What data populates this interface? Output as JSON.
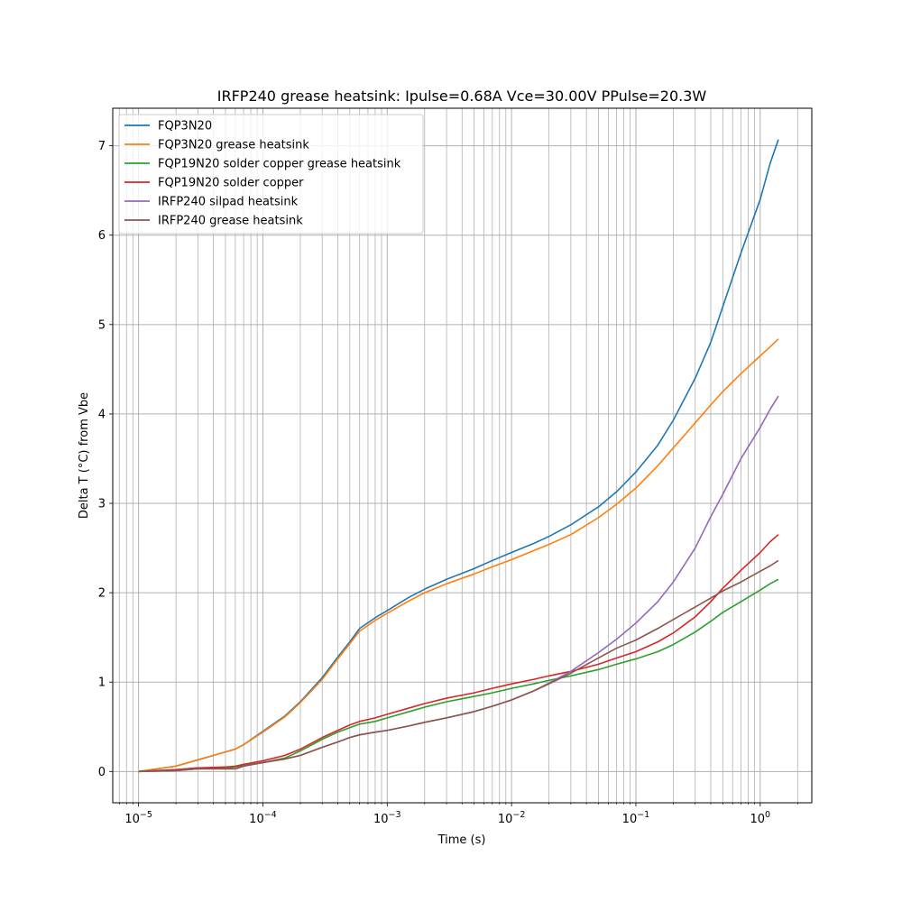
{
  "chart_data": {
    "type": "line",
    "title": "IRFP240 grease heatsink: Ipulse=0.68A Vce=30.00V PPulse=20.3W",
    "xlabel": "Time (s)",
    "ylabel": "Delta T (°C) from Vbe",
    "xscale": "log",
    "xlim": [
      6.2e-06,
      2.6
    ],
    "ylim": [
      -0.35,
      7.42
    ],
    "grid": true,
    "grid_minor_x": true,
    "legend_position": "top-left",
    "x_ticks": [
      {
        "value": 1e-05,
        "base": "10",
        "exp": "−5"
      },
      {
        "value": 0.0001,
        "base": "10",
        "exp": "−4"
      },
      {
        "value": 0.001,
        "base": "10",
        "exp": "−3"
      },
      {
        "value": 0.01,
        "base": "10",
        "exp": "−2"
      },
      {
        "value": 0.1,
        "base": "10",
        "exp": "−1"
      },
      {
        "value": 1,
        "base": "10",
        "exp": "0"
      }
    ],
    "y_ticks": [
      {
        "value": 0,
        "label": "0"
      },
      {
        "value": 1,
        "label": "1"
      },
      {
        "value": 2,
        "label": "2"
      },
      {
        "value": 3,
        "label": "3"
      },
      {
        "value": 4,
        "label": "4"
      },
      {
        "value": 5,
        "label": "5"
      },
      {
        "value": 6,
        "label": "6"
      },
      {
        "value": 7,
        "label": "7"
      }
    ],
    "series": [
      {
        "name": "FQP3N20",
        "color": "#1f77b4",
        "points": [
          [
            1e-05,
            0
          ],
          [
            2e-05,
            0.06
          ],
          [
            3e-05,
            0.13
          ],
          [
            4e-05,
            0.18
          ],
          [
            6e-05,
            0.25
          ],
          [
            7e-05,
            0.3
          ],
          [
            0.0001,
            0.45
          ],
          [
            0.00015,
            0.62
          ],
          [
            0.0002,
            0.78
          ],
          [
            0.0003,
            1.05
          ],
          [
            0.0004,
            1.28
          ],
          [
            0.0005,
            1.45
          ],
          [
            0.0006,
            1.6
          ],
          [
            0.0008,
            1.72
          ],
          [
            0.001,
            1.8
          ],
          [
            0.0015,
            1.95
          ],
          [
            0.002,
            2.04
          ],
          [
            0.003,
            2.15
          ],
          [
            0.005,
            2.27
          ],
          [
            0.007,
            2.36
          ],
          [
            0.01,
            2.45
          ],
          [
            0.015,
            2.55
          ],
          [
            0.02,
            2.63
          ],
          [
            0.03,
            2.76
          ],
          [
            0.05,
            2.96
          ],
          [
            0.07,
            3.13
          ],
          [
            0.1,
            3.35
          ],
          [
            0.15,
            3.65
          ],
          [
            0.2,
            3.93
          ],
          [
            0.3,
            4.4
          ],
          [
            0.4,
            4.8
          ],
          [
            0.5,
            5.2
          ],
          [
            0.7,
            5.8
          ],
          [
            1.0,
            6.4
          ],
          [
            1.2,
            6.8
          ],
          [
            1.4,
            7.07
          ]
        ]
      },
      {
        "name": "FQP3N20 grease heatsink",
        "color": "#ff7f0e",
        "points": [
          [
            1e-05,
            0
          ],
          [
            2e-05,
            0.06
          ],
          [
            3e-05,
            0.13
          ],
          [
            4e-05,
            0.18
          ],
          [
            6e-05,
            0.25
          ],
          [
            7e-05,
            0.3
          ],
          [
            0.0001,
            0.44
          ],
          [
            0.00015,
            0.61
          ],
          [
            0.0002,
            0.77
          ],
          [
            0.0003,
            1.03
          ],
          [
            0.0004,
            1.26
          ],
          [
            0.0005,
            1.43
          ],
          [
            0.0006,
            1.57
          ],
          [
            0.0008,
            1.69
          ],
          [
            0.001,
            1.77
          ],
          [
            0.0015,
            1.91
          ],
          [
            0.002,
            2.0
          ],
          [
            0.003,
            2.1
          ],
          [
            0.005,
            2.21
          ],
          [
            0.007,
            2.29
          ],
          [
            0.01,
            2.37
          ],
          [
            0.015,
            2.47
          ],
          [
            0.02,
            2.54
          ],
          [
            0.03,
            2.65
          ],
          [
            0.05,
            2.84
          ],
          [
            0.07,
            2.99
          ],
          [
            0.1,
            3.17
          ],
          [
            0.15,
            3.42
          ],
          [
            0.2,
            3.62
          ],
          [
            0.3,
            3.9
          ],
          [
            0.4,
            4.1
          ],
          [
            0.5,
            4.25
          ],
          [
            0.7,
            4.45
          ],
          [
            1.0,
            4.65
          ],
          [
            1.2,
            4.75
          ],
          [
            1.4,
            4.84
          ]
        ]
      },
      {
        "name": "FQP19N20 solder copper grease heatsink",
        "color": "#2ca02c",
        "points": [
          [
            1e-05,
            0
          ],
          [
            2e-05,
            0.02
          ],
          [
            3e-05,
            0.04
          ],
          [
            5e-05,
            0.04
          ],
          [
            6e-05,
            0.05
          ],
          [
            7e-05,
            0.07
          ],
          [
            0.0001,
            0.1
          ],
          [
            0.00015,
            0.15
          ],
          [
            0.0002,
            0.23
          ],
          [
            0.0003,
            0.36
          ],
          [
            0.0004,
            0.44
          ],
          [
            0.0005,
            0.49
          ],
          [
            0.0006,
            0.53
          ],
          [
            0.0008,
            0.56
          ],
          [
            0.001,
            0.6
          ],
          [
            0.0015,
            0.67
          ],
          [
            0.002,
            0.72
          ],
          [
            0.003,
            0.78
          ],
          [
            0.005,
            0.84
          ],
          [
            0.007,
            0.88
          ],
          [
            0.01,
            0.93
          ],
          [
            0.015,
            0.98
          ],
          [
            0.02,
            1.02
          ],
          [
            0.03,
            1.07
          ],
          [
            0.05,
            1.14
          ],
          [
            0.07,
            1.2
          ],
          [
            0.1,
            1.26
          ],
          [
            0.15,
            1.34
          ],
          [
            0.2,
            1.42
          ],
          [
            0.3,
            1.56
          ],
          [
            0.4,
            1.68
          ],
          [
            0.5,
            1.78
          ],
          [
            0.7,
            1.9
          ],
          [
            1.0,
            2.03
          ],
          [
            1.2,
            2.1
          ],
          [
            1.4,
            2.15
          ]
        ]
      },
      {
        "name": "FQP19N20 solder copper",
        "color": "#d62728",
        "points": [
          [
            1e-05,
            0
          ],
          [
            2e-05,
            0.02
          ],
          [
            3e-05,
            0.04
          ],
          [
            5e-05,
            0.05
          ],
          [
            6e-05,
            0.06
          ],
          [
            7e-05,
            0.08
          ],
          [
            0.0001,
            0.12
          ],
          [
            0.00015,
            0.18
          ],
          [
            0.0002,
            0.25
          ],
          [
            0.0003,
            0.38
          ],
          [
            0.0004,
            0.46
          ],
          [
            0.0005,
            0.52
          ],
          [
            0.0006,
            0.56
          ],
          [
            0.0008,
            0.6
          ],
          [
            0.001,
            0.64
          ],
          [
            0.0015,
            0.71
          ],
          [
            0.002,
            0.76
          ],
          [
            0.003,
            0.82
          ],
          [
            0.005,
            0.88
          ],
          [
            0.007,
            0.93
          ],
          [
            0.01,
            0.98
          ],
          [
            0.015,
            1.03
          ],
          [
            0.02,
            1.07
          ],
          [
            0.03,
            1.12
          ],
          [
            0.05,
            1.2
          ],
          [
            0.07,
            1.27
          ],
          [
            0.1,
            1.34
          ],
          [
            0.15,
            1.45
          ],
          [
            0.2,
            1.55
          ],
          [
            0.3,
            1.73
          ],
          [
            0.4,
            1.9
          ],
          [
            0.5,
            2.05
          ],
          [
            0.7,
            2.25
          ],
          [
            1.0,
            2.45
          ],
          [
            1.2,
            2.57
          ],
          [
            1.4,
            2.65
          ]
        ]
      },
      {
        "name": "IRFP240 silpad heatsink",
        "color": "#9467bd",
        "points": [
          [
            1e-05,
            0
          ],
          [
            2e-05,
            0.01
          ],
          [
            3e-05,
            0.03
          ],
          [
            5e-05,
            0.03
          ],
          [
            6e-05,
            0.03
          ],
          [
            7e-05,
            0.06
          ],
          [
            0.0001,
            0.1
          ],
          [
            0.00015,
            0.14
          ],
          [
            0.0002,
            0.18
          ],
          [
            0.0003,
            0.27
          ],
          [
            0.0004,
            0.33
          ],
          [
            0.0005,
            0.38
          ],
          [
            0.0006,
            0.41
          ],
          [
            0.0008,
            0.44
          ],
          [
            0.001,
            0.46
          ],
          [
            0.0015,
            0.51
          ],
          [
            0.002,
            0.55
          ],
          [
            0.003,
            0.6
          ],
          [
            0.005,
            0.67
          ],
          [
            0.007,
            0.73
          ],
          [
            0.01,
            0.8
          ],
          [
            0.015,
            0.9
          ],
          [
            0.02,
            0.99
          ],
          [
            0.03,
            1.12
          ],
          [
            0.05,
            1.33
          ],
          [
            0.07,
            1.48
          ],
          [
            0.1,
            1.66
          ],
          [
            0.15,
            1.9
          ],
          [
            0.2,
            2.12
          ],
          [
            0.3,
            2.5
          ],
          [
            0.4,
            2.85
          ],
          [
            0.5,
            3.1
          ],
          [
            0.7,
            3.5
          ],
          [
            1.0,
            3.85
          ],
          [
            1.2,
            4.05
          ],
          [
            1.4,
            4.2
          ]
        ]
      },
      {
        "name": "IRFP240 grease heatsink",
        "color": "#8c564b",
        "points": [
          [
            1e-05,
            0
          ],
          [
            2e-05,
            0.01
          ],
          [
            3e-05,
            0.03
          ],
          [
            5e-05,
            0.03
          ],
          [
            6e-05,
            0.03
          ],
          [
            7e-05,
            0.06
          ],
          [
            0.0001,
            0.1
          ],
          [
            0.00015,
            0.14
          ],
          [
            0.0002,
            0.18
          ],
          [
            0.0003,
            0.27
          ],
          [
            0.0004,
            0.33
          ],
          [
            0.0005,
            0.38
          ],
          [
            0.0006,
            0.41
          ],
          [
            0.0008,
            0.44
          ],
          [
            0.001,
            0.46
          ],
          [
            0.0015,
            0.51
          ],
          [
            0.002,
            0.55
          ],
          [
            0.003,
            0.6
          ],
          [
            0.005,
            0.67
          ],
          [
            0.007,
            0.73
          ],
          [
            0.01,
            0.8
          ],
          [
            0.015,
            0.9
          ],
          [
            0.02,
            0.98
          ],
          [
            0.03,
            1.1
          ],
          [
            0.05,
            1.27
          ],
          [
            0.07,
            1.38
          ],
          [
            0.1,
            1.47
          ],
          [
            0.15,
            1.6
          ],
          [
            0.2,
            1.7
          ],
          [
            0.3,
            1.84
          ],
          [
            0.4,
            1.94
          ],
          [
            0.5,
            2.02
          ],
          [
            0.7,
            2.12
          ],
          [
            1.0,
            2.24
          ],
          [
            1.2,
            2.3
          ],
          [
            1.4,
            2.36
          ]
        ]
      }
    ]
  }
}
